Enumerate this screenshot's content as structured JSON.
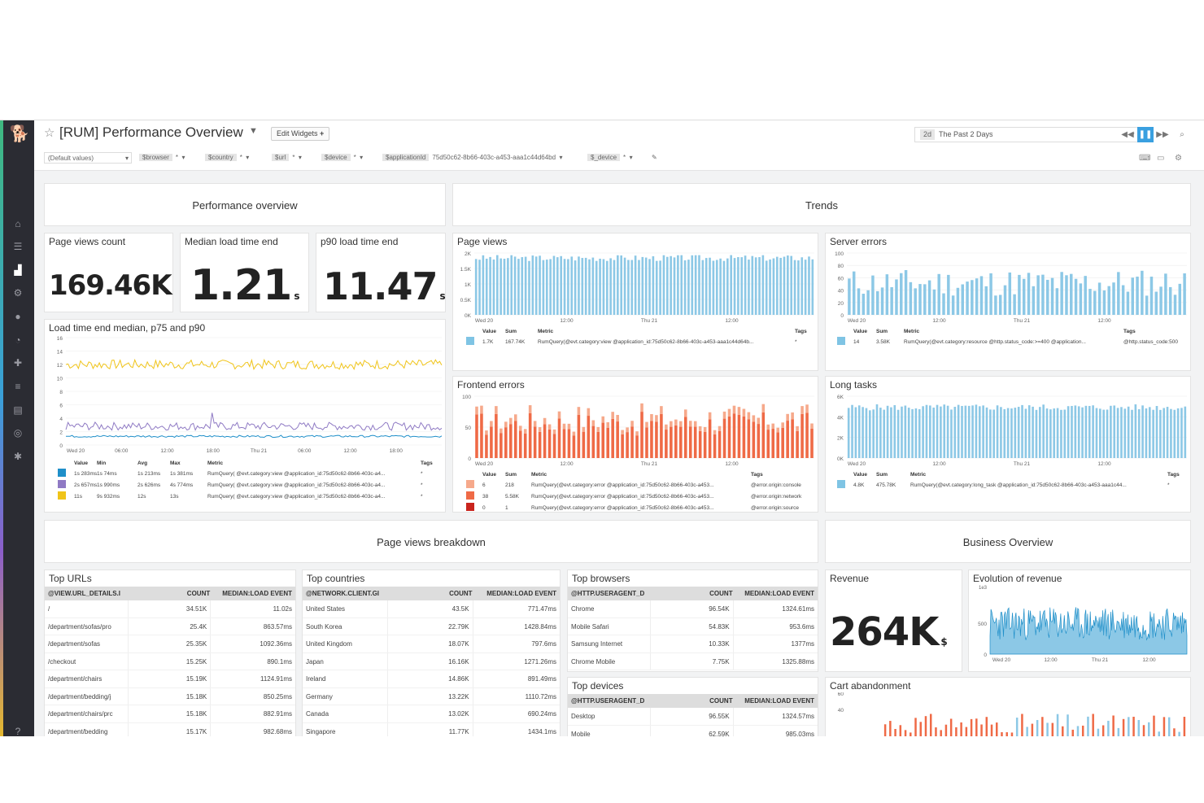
{
  "app": {
    "title": "[RUM] Performance Overview",
    "edit_widgets": "Edit Widgets",
    "timeframe": {
      "badge": "2d",
      "label": "The Past 2 Days"
    },
    "template_vars": [
      {
        "name": "(Default values)",
        "value": ""
      },
      {
        "name": "$browser",
        "value": "*"
      },
      {
        "name": "$country",
        "value": "*"
      },
      {
        "name": "$url",
        "value": "*"
      },
      {
        "name": "$device",
        "value": "*"
      },
      {
        "name": "$applicationId",
        "value": "75d50c62-8b66-403c-a453-aaa1c44d64bd"
      },
      {
        "name": "$_device",
        "value": "*"
      }
    ]
  },
  "groups": {
    "performance": "Performance overview",
    "trends": "Trends",
    "breakdown": "Page views breakdown",
    "business": "Business Overview"
  },
  "metrics": {
    "page_views": {
      "title": "Page views count",
      "value": "169.46K",
      "unit": ""
    },
    "median_load": {
      "title": "Median load time end",
      "value": "1.21",
      "unit": "s"
    },
    "p90_load": {
      "title": "p90 load time end",
      "value": "11.47",
      "unit": "s"
    },
    "revenue": {
      "title": "Revenue",
      "value": "264K",
      "unit": "$"
    }
  },
  "charts": {
    "load_time": {
      "title": "Load time end median, p75 and p90",
      "yticks": [
        "16",
        "14",
        "12",
        "10",
        "8",
        "6",
        "4",
        "2",
        "0"
      ],
      "xticks": [
        "Wed 20",
        "06:00",
        "12:00",
        "18:00",
        "Thu 21",
        "06:00",
        "12:00",
        "18:00"
      ],
      "legend_headers": [
        "Value",
        "Min",
        "Avg",
        "Max",
        "Metric",
        "Tags"
      ],
      "legend": [
        {
          "color": "#1f8fc9",
          "cells": [
            "1s 283ms",
            "1s 74ms",
            "1s 213ms",
            "1s 381ms",
            "RumQuery( @evt.category:view @application_id:75d50c62-8b66-403c-a4...",
            "*"
          ]
        },
        {
          "color": "#8f7ac4",
          "cells": [
            "2s 657ms",
            "1s 990ms",
            "2s 626ms",
            "4s 774ms",
            "RumQuery( @evt.category:view @application_id:75d50c62-8b66-403c-a4...",
            "*"
          ]
        },
        {
          "color": "#f0c419",
          "cells": [
            "11s",
            "9s 932ms",
            "12s",
            "13s",
            "RumQuery( @evt.category:view @application_id:75d50c62-8b66-403c-a4...",
            "*"
          ]
        }
      ]
    },
    "page_views": {
      "title": "Page views",
      "yticks": [
        "2K",
        "1.5K",
        "1K",
        "0.5K",
        "0K"
      ],
      "xticks": [
        "Wed 20",
        "12:00",
        "Thu 21",
        "12:00"
      ],
      "legend_headers": [
        "Value",
        "Sum",
        "Metric",
        "Tags"
      ],
      "legend": [
        {
          "color": "#7fc4e4",
          "cells": [
            "1.7K",
            "167.74K",
            "RumQuery(@evt.category:view @application_id:75d50c62-8b66-403c-a453-aaa1c44d64b...",
            "*"
          ]
        }
      ]
    },
    "server_errors": {
      "title": "Server errors",
      "yticks": [
        "100",
        "80",
        "60",
        "40",
        "20",
        "0"
      ],
      "xticks": [
        "Wed 20",
        "12:00",
        "Thu 21",
        "12:00"
      ],
      "legend_headers": [
        "Value",
        "Sum",
        "Metric",
        "Tags"
      ],
      "legend": [
        {
          "color": "#7fc4e4",
          "cells": [
            "14",
            "3.58K",
            "RumQuery(@evt.category:resource @http.status_code:>=400 @application...",
            "@http.status_code:500"
          ]
        }
      ]
    },
    "frontend_errors": {
      "title": "Frontend errors",
      "yticks": [
        "100",
        "50",
        "0"
      ],
      "xticks": [
        "Wed 20",
        "12:00",
        "Thu 21",
        "12:00"
      ],
      "legend_headers": [
        "Value",
        "Sum",
        "Metric",
        "Tags"
      ],
      "legend": [
        {
          "color": "#f6a98b",
          "cells": [
            "6",
            "218",
            "RumQuery(@evt.category:error @application_id:75d50c62-8b66-403c-a453...",
            "@error.origin:console"
          ]
        },
        {
          "color": "#ef6a46",
          "cells": [
            "38",
            "5.58K",
            "RumQuery(@evt.category:error @application_id:75d50c62-8b66-403c-a453...",
            "@error.origin:network"
          ]
        },
        {
          "color": "#c9241d",
          "cells": [
            "0",
            "1",
            "RumQuery(@evt.category:error @application_id:75d50c62-8b66-403c-a453...",
            "@error.origin:source"
          ]
        }
      ]
    },
    "long_tasks": {
      "title": "Long tasks",
      "yticks": [
        "6K",
        "4K",
        "2K",
        "0K"
      ],
      "xticks": [
        "Wed 20",
        "12:00",
        "Thu 21",
        "12:00"
      ],
      "legend_headers": [
        "Value",
        "Sum",
        "Metric",
        "Tags"
      ],
      "legend": [
        {
          "color": "#7fc4e4",
          "cells": [
            "4.8K",
            "475.78K",
            "RumQuery(@evt.category:long_task @application_id:75d50c62-8b66-403c-a453-aaa1c44...",
            "*"
          ]
        }
      ]
    },
    "revenue_evolution": {
      "title": "Evolution of revenue",
      "scale": "1e3",
      "yticks": [
        "500",
        "0"
      ],
      "xticks": [
        "Wed 20",
        "12:00",
        "Thu 21",
        "12:00"
      ]
    },
    "cart_abandonment": {
      "title": "Cart abandonment",
      "yticks": [
        "60",
        "40"
      ]
    }
  },
  "tables": {
    "top_urls": {
      "title": "Top URLs",
      "headers": [
        "@VIEW.URL_DETAILS.I",
        "COUNT",
        "MEDIAN:LOAD EVENT"
      ],
      "rows": [
        [
          "/",
          "34.51K",
          "11.02s"
        ],
        [
          "/department/sofas/pro",
          "25.4K",
          "863.57ms"
        ],
        [
          "/department/sofas",
          "25.35K",
          "1092.36ms"
        ],
        [
          "/checkout",
          "15.25K",
          "890.1ms"
        ],
        [
          "/department/chairs",
          "15.19K",
          "1124.91ms"
        ],
        [
          "/department/bedding/j",
          "15.18K",
          "850.25ms"
        ],
        [
          "/department/chairs/prc",
          "15.18K",
          "882.91ms"
        ],
        [
          "/department/bedding",
          "15.17K",
          "982.68ms"
        ]
      ]
    },
    "top_countries": {
      "title": "Top countries",
      "headers": [
        "@NETWORK.CLIENT.GI",
        "COUNT",
        "MEDIAN:LOAD EVENT"
      ],
      "rows": [
        [
          "United States",
          "43.5K",
          "771.47ms"
        ],
        [
          "South Korea",
          "22.79K",
          "1428.84ms"
        ],
        [
          "United Kingdom",
          "18.07K",
          "797.6ms"
        ],
        [
          "Japan",
          "16.16K",
          "1271.26ms"
        ],
        [
          "Ireland",
          "14.86K",
          "891.49ms"
        ],
        [
          "Germany",
          "13.22K",
          "1110.72ms"
        ],
        [
          "Canada",
          "13.02K",
          "690.24ms"
        ],
        [
          "Singapore",
          "11.77K",
          "1434.1ms"
        ]
      ]
    },
    "top_browsers": {
      "title": "Top browsers",
      "headers": [
        "@HTTP.USERAGENT_D",
        "COUNT",
        "MEDIAN:LOAD EVENT"
      ],
      "rows": [
        [
          "Chrome",
          "96.54K",
          "1324.61ms"
        ],
        [
          "Mobile Safari",
          "54.83K",
          "953.6ms"
        ],
        [
          "Samsung Internet",
          "10.33K",
          "1377ms"
        ],
        [
          "Chrome Mobile",
          "7.75K",
          "1325.88ms"
        ]
      ]
    },
    "top_devices": {
      "title": "Top devices",
      "headers": [
        "@HTTP.USERAGENT_D",
        "COUNT",
        "MEDIAN:LOAD EVENT"
      ],
      "rows": [
        [
          "Desktop",
          "96.55K",
          "1324.57ms"
        ],
        [
          "Mobile",
          "62.59K",
          "985.03ms"
        ]
      ]
    }
  },
  "colors": {
    "accent": "#3aa0e0",
    "bar_blue": "#7fc4e4",
    "err_red": "#ef6a46",
    "line_yellow": "#f0c419",
    "line_purple": "#8f7ac4"
  }
}
